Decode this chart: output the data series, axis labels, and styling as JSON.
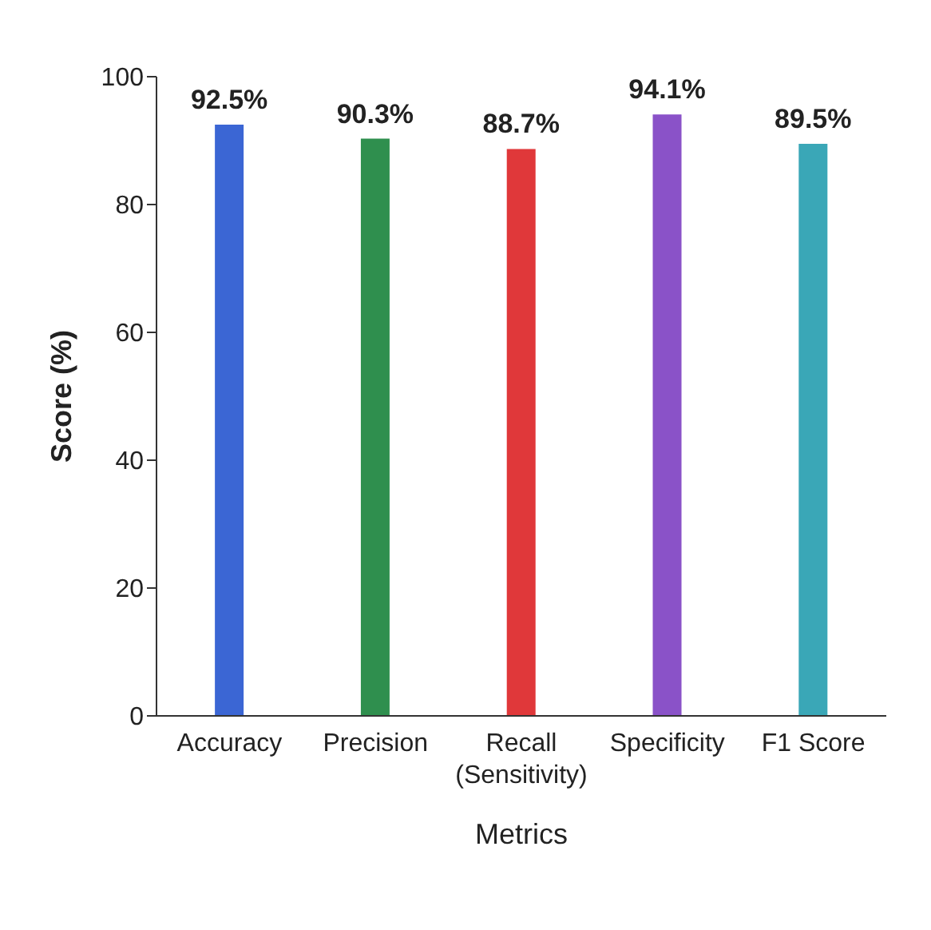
{
  "chart_data": {
    "type": "bar",
    "xlabel": "Metrics",
    "ylabel": "Score (%)",
    "categories": [
      "Accuracy",
      "Precision",
      "Recall\n(Sensitivity)",
      "Specificity",
      "F1 Score"
    ],
    "values": [
      92.5,
      90.3,
      88.7,
      94.1,
      89.5
    ],
    "colors": [
      "#3b66d4",
      "#2f8f4e",
      "#e0383a",
      "#8a52c8",
      "#3aa7b7"
    ],
    "value_labels": [
      "92.5%",
      "90.3%",
      "88.7%",
      "94.1%",
      "89.5%"
    ],
    "ylim": [
      0,
      100
    ],
    "yticks": [
      0,
      20,
      40,
      60,
      80,
      100
    ],
    "grid": false,
    "legend": false
  }
}
